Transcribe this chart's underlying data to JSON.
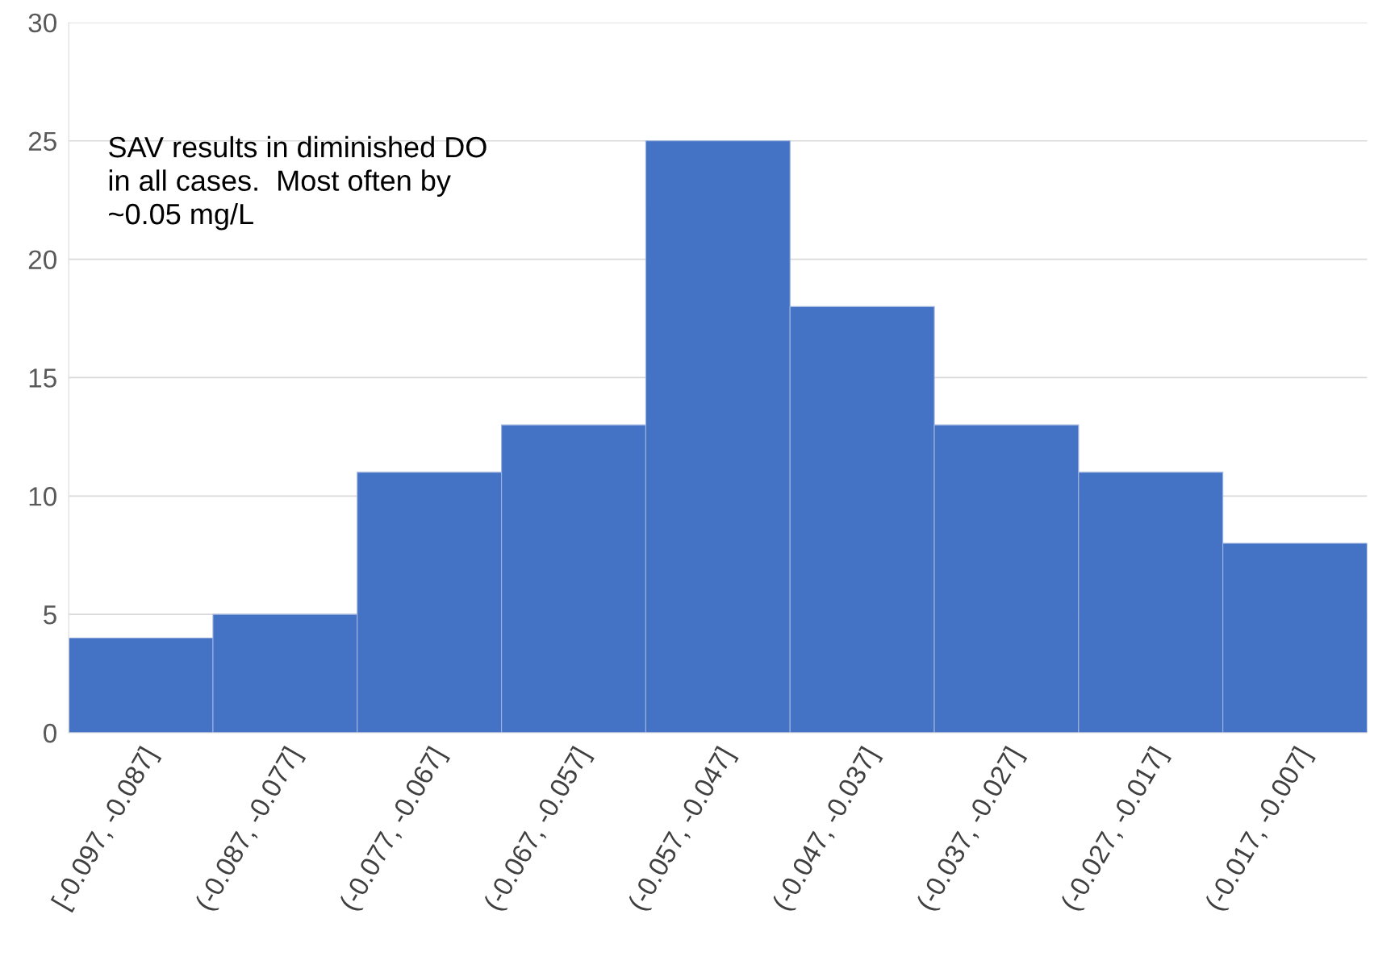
{
  "chart_data": {
    "type": "bar",
    "categories": [
      "[-0.097, -0.087]",
      "(-0.087, -0.077]",
      "(-0.077, -0.067]",
      "(-0.067, -0.057]",
      "(-0.057, -0.047]",
      "(-0.047, -0.037]",
      "(-0.037, -0.027]",
      "(-0.027, -0.017]",
      "(-0.017, -0.007]"
    ],
    "values": [
      4,
      5,
      11,
      13,
      25,
      18,
      13,
      11,
      8
    ],
    "color": "#4472c4",
    "ylim": [
      0,
      30
    ],
    "yticks": [
      0,
      5,
      10,
      15,
      20,
      25,
      30
    ],
    "grid": "y",
    "annotations": [
      "SAV results in diminished DO\nin all cases.  Most often by\n~0.05 mg/L"
    ]
  }
}
